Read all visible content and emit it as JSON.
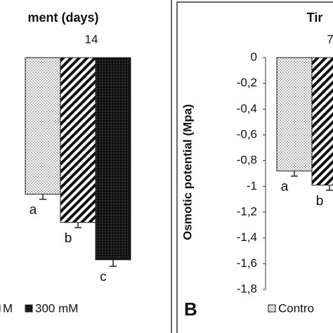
{
  "chart_data": [
    {
      "type": "bar",
      "title": "ment (days)",
      "categories": [
        "14"
      ],
      "series": [
        {
          "name": null,
          "fill": "dots",
          "values": [
            -1.06
          ],
          "errors": [
            0.04
          ],
          "letters": [
            "a"
          ]
        },
        {
          "name": "M",
          "fill": "stripes",
          "values": [
            -1.28
          ],
          "errors": [
            0.04
          ],
          "letters": [
            "b"
          ]
        },
        {
          "name": "300 mM",
          "fill": "dark",
          "values": [
            -1.57
          ],
          "errors": [
            0.05
          ],
          "letters": [
            "c"
          ]
        }
      ],
      "ylim": [
        -1.8,
        0
      ]
    },
    {
      "type": "bar",
      "title": "Tir",
      "panel": "B",
      "ylabel": "Osmotic potential (Mpa)",
      "categories": [
        "7"
      ],
      "series": [
        {
          "name": "Contro",
          "fill": "dots",
          "values": [
            -0.88
          ],
          "errors": [
            0.04
          ],
          "letters": [
            "a"
          ]
        },
        {
          "name": null,
          "fill": "stripes",
          "values": [
            -0.99
          ],
          "errors": [
            0.04
          ],
          "letters": [
            "b"
          ]
        }
      ],
      "ylim": [
        -1.8,
        0
      ],
      "yticks": [
        0,
        {
          "value": -0.2,
          "label": "-0,2"
        },
        {
          "value": -0.4,
          "label": "-0,4"
        },
        {
          "value": -0.6,
          "label": "-0,6"
        },
        {
          "value": -0.8,
          "label": "-0,8"
        },
        -1,
        {
          "value": -1.2,
          "label": "-1,2"
        },
        {
          "value": -1.4,
          "label": "-1,4"
        },
        {
          "value": -1.6,
          "label": "-1,6"
        },
        {
          "value": -1.8,
          "label": "-1,8"
        }
      ]
    }
  ]
}
